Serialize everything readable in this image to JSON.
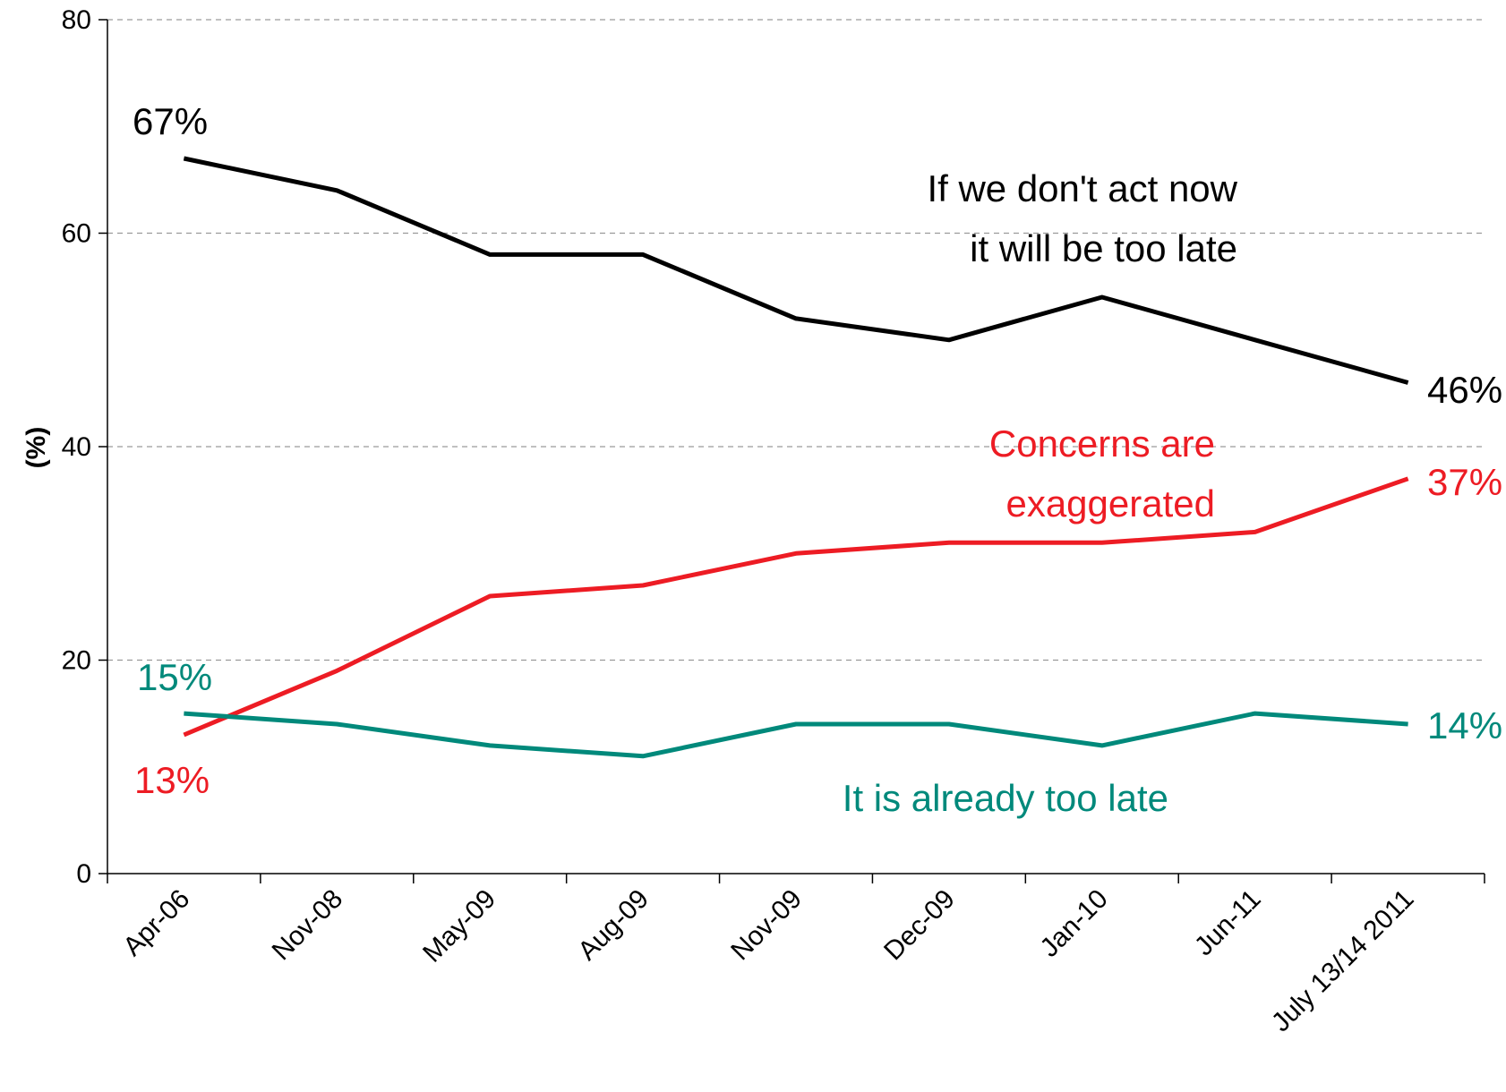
{
  "chart_data": {
    "type": "line",
    "title": "",
    "xlabel": "",
    "ylabel": "(%)",
    "ylim": [
      0,
      80
    ],
    "yticks": [
      "0",
      "20",
      "40",
      "60",
      "80"
    ],
    "grid": "horizontal dashed",
    "categories": [
      "Apr-06",
      "Nov-08",
      "May-09",
      "Aug-09",
      "Nov-09",
      "Dec-09",
      "Jan-10",
      "Jun-11",
      "July 13/14 2011"
    ],
    "series": [
      {
        "name": "If we don't act now it will be too late",
        "color": "#000000",
        "values": [
          67,
          64,
          58,
          58,
          52,
          50,
          54,
          50,
          46
        ],
        "label_lines": [
          "If we don't act now",
          "it will be too late"
        ],
        "start_label": "67%",
        "end_label": "46%"
      },
      {
        "name": "Concerns are exaggerated",
        "color": "#ed1c24",
        "values": [
          13,
          19,
          26,
          27,
          30,
          31,
          31,
          32,
          37
        ],
        "label_lines": [
          "Concerns are",
          "exaggerated"
        ],
        "start_label": "13%",
        "end_label": "37%"
      },
      {
        "name": "It is already too late",
        "color": "#00897b",
        "values": [
          15,
          14,
          12,
          11,
          14,
          14,
          12,
          15,
          14
        ],
        "label_lines": [
          "It is already too late"
        ],
        "start_label": "15%",
        "end_label": "14%"
      }
    ]
  }
}
